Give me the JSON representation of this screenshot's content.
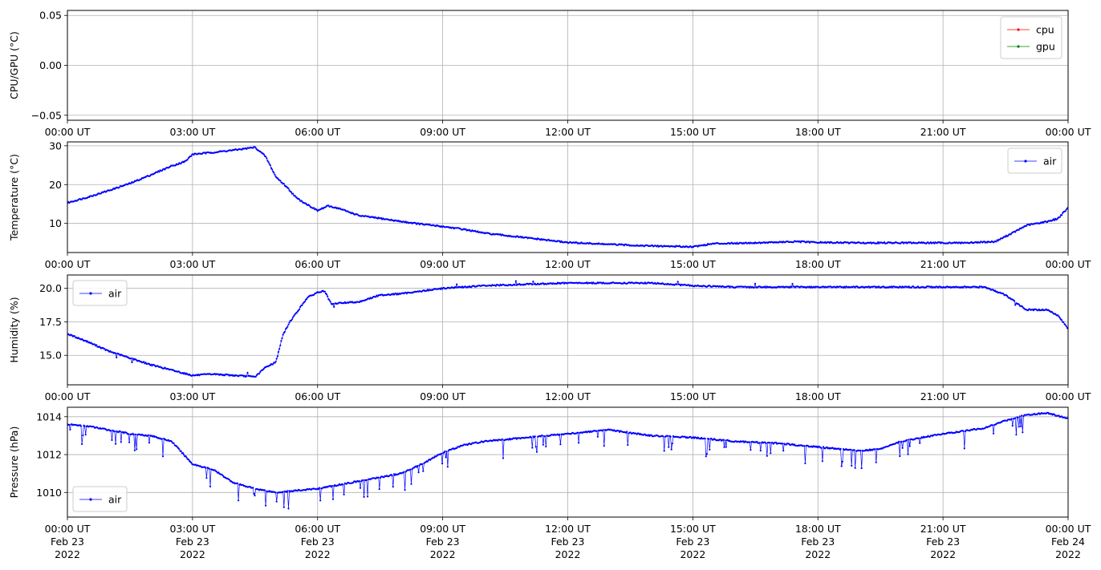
{
  "colors": {
    "cpu": "#ff0000",
    "gpu": "#008000",
    "air": "#0000ff",
    "grid": "#b0b0b0"
  },
  "x_ticks": [
    "00:00 UT",
    "03:00 UT",
    "06:00 UT",
    "09:00 UT",
    "12:00 UT",
    "15:00 UT",
    "18:00 UT",
    "21:00 UT",
    "00:00 UT"
  ],
  "x_dates": [
    "Feb 23",
    "Feb 23",
    "Feb 23",
    "Feb 23",
    "Feb 23",
    "Feb 23",
    "Feb 23",
    "Feb 23",
    "Feb 24"
  ],
  "x_years": [
    "2022",
    "2022",
    "2022",
    "2022",
    "2022",
    "2022",
    "2022",
    "2022",
    "2022"
  ],
  "chart_data": [
    {
      "type": "line",
      "ylabel": "CPU/GPU (°C)",
      "ylim": [
        -0.055,
        0.055
      ],
      "yticks": [
        -0.05,
        0.0,
        0.05
      ],
      "ytick_labels": [
        "−0.05",
        "0.00",
        "0.05"
      ],
      "xlim": [
        "2022-02-23T00:00",
        "2022-02-24T00:00"
      ],
      "grid": true,
      "legend": "top-right",
      "series": [
        {
          "name": "cpu",
          "color": "#ff0000",
          "points": []
        },
        {
          "name": "gpu",
          "color": "#008000",
          "points": []
        }
      ]
    },
    {
      "type": "line",
      "ylabel": "Temperature (°C)",
      "ylim": [
        2.5,
        31
      ],
      "yticks": [
        10,
        20,
        30
      ],
      "ytick_labels": [
        "10",
        "20",
        "30"
      ],
      "xlim": [
        "2022-02-23T00:00",
        "2022-02-24T00:00"
      ],
      "grid": true,
      "legend": "top-right",
      "series": [
        {
          "name": "air",
          "color": "#0000ff",
          "points": [
            [
              "00:00",
              15.3
            ],
            [
              "00:30",
              16.8
            ],
            [
              "01:00",
              18.5
            ],
            [
              "01:30",
              20.3
            ],
            [
              "02:00",
              22.5
            ],
            [
              "02:30",
              24.8
            ],
            [
              "02:50",
              26.0
            ],
            [
              "03:00",
              27.8
            ],
            [
              "03:30",
              28.3
            ],
            [
              "04:00",
              28.9
            ],
            [
              "04:30",
              29.6
            ],
            [
              "04:45",
              27.3
            ],
            [
              "05:00",
              22.0
            ],
            [
              "05:15",
              19.5
            ],
            [
              "05:30",
              16.5
            ],
            [
              "06:00",
              13.3
            ],
            [
              "06:15",
              14.5
            ],
            [
              "06:30",
              13.9
            ],
            [
              "07:00",
              12.0
            ],
            [
              "07:30",
              11.3
            ],
            [
              "08:00",
              10.5
            ],
            [
              "08:30",
              9.8
            ],
            [
              "09:00",
              9.2
            ],
            [
              "09:30",
              8.5
            ],
            [
              "10:00",
              7.5
            ],
            [
              "11:00",
              6.3
            ],
            [
              "12:00",
              5.1
            ],
            [
              "13:00",
              4.6
            ],
            [
              "14:00",
              4.2
            ],
            [
              "15:00",
              4.0
            ],
            [
              "15:30",
              4.8
            ],
            [
              "16:30",
              5.0
            ],
            [
              "17:30",
              5.3
            ],
            [
              "18:00",
              5.1
            ],
            [
              "19:00",
              5.0
            ],
            [
              "20:00",
              5.0
            ],
            [
              "21:00",
              5.0
            ],
            [
              "21:30",
              5.0
            ],
            [
              "22:15",
              5.3
            ],
            [
              "22:45",
              8.0
            ],
            [
              "23:00",
              9.5
            ],
            [
              "23:30",
              10.5
            ],
            [
              "23:45",
              11.2
            ],
            [
              "24:00",
              14.0
            ]
          ]
        }
      ]
    },
    {
      "type": "line",
      "ylabel": "Humidity (%)",
      "ylim": [
        12.8,
        21.0
      ],
      "yticks": [
        15.0,
        17.5,
        20.0
      ],
      "ytick_labels": [
        "15.0",
        "17.5",
        "20.0"
      ],
      "xlim": [
        "2022-02-23T00:00",
        "2022-02-24T00:00"
      ],
      "grid": true,
      "legend": "top-left",
      "series": [
        {
          "name": "air",
          "color": "#0000ff",
          "points": [
            [
              "00:00",
              16.6
            ],
            [
              "00:30",
              16.0
            ],
            [
              "01:00",
              15.3
            ],
            [
              "01:30",
              14.8
            ],
            [
              "02:00",
              14.3
            ],
            [
              "02:30",
              13.9
            ],
            [
              "03:00",
              13.5
            ],
            [
              "03:30",
              13.6
            ],
            [
              "04:00",
              13.5
            ],
            [
              "04:30",
              13.4
            ],
            [
              "04:45",
              14.1
            ],
            [
              "05:00",
              14.5
            ],
            [
              "05:10",
              16.5
            ],
            [
              "05:20",
              17.5
            ],
            [
              "05:30",
              18.2
            ],
            [
              "05:45",
              19.3
            ],
            [
              "06:00",
              19.7
            ],
            [
              "06:10",
              19.8
            ],
            [
              "06:20",
              18.8
            ],
            [
              "06:30",
              18.9
            ],
            [
              "07:00",
              19.0
            ],
            [
              "07:30",
              19.5
            ],
            [
              "08:00",
              19.6
            ],
            [
              "08:30",
              19.8
            ],
            [
              "09:00",
              20.0
            ],
            [
              "10:00",
              20.2
            ],
            [
              "11:00",
              20.3
            ],
            [
              "12:00",
              20.4
            ],
            [
              "13:00",
              20.4
            ],
            [
              "14:00",
              20.4
            ],
            [
              "15:00",
              20.2
            ],
            [
              "16:00",
              20.1
            ],
            [
              "17:00",
              20.1
            ],
            [
              "18:00",
              20.1
            ],
            [
              "19:00",
              20.1
            ],
            [
              "20:00",
              20.1
            ],
            [
              "21:00",
              20.1
            ],
            [
              "22:00",
              20.1
            ],
            [
              "22:30",
              19.5
            ],
            [
              "23:00",
              18.4
            ],
            [
              "23:30",
              18.4
            ],
            [
              "23:45",
              18.0
            ],
            [
              "24:00",
              17.0
            ]
          ]
        }
      ]
    },
    {
      "type": "line",
      "ylabel": "Pressure (hPa)",
      "ylim": [
        1008.7,
        1014.5
      ],
      "yticks": [
        1010,
        1012,
        1014
      ],
      "ytick_labels": [
        "1010",
        "1012",
        "1014"
      ],
      "xlim": [
        "2022-02-23T00:00",
        "2022-02-24T00:00"
      ],
      "grid": true,
      "legend": "bottom-left",
      "series": [
        {
          "name": "air",
          "color": "#0000ff",
          "points": [
            [
              "00:00",
              1013.6
            ],
            [
              "00:30",
              1013.5
            ],
            [
              "01:00",
              1013.3
            ],
            [
              "01:30",
              1013.1
            ],
            [
              "02:00",
              1013.0
            ],
            [
              "02:30",
              1012.7
            ],
            [
              "03:00",
              1011.5
            ],
            [
              "03:30",
              1011.2
            ],
            [
              "04:00",
              1010.5
            ],
            [
              "04:30",
              1010.2
            ],
            [
              "05:00",
              1010.0
            ],
            [
              "05:30",
              1010.1
            ],
            [
              "06:00",
              1010.2
            ],
            [
              "06:30",
              1010.4
            ],
            [
              "07:00",
              1010.6
            ],
            [
              "07:30",
              1010.8
            ],
            [
              "08:00",
              1011.0
            ],
            [
              "08:30",
              1011.5
            ],
            [
              "09:00",
              1012.1
            ],
            [
              "09:30",
              1012.5
            ],
            [
              "10:00",
              1012.7
            ],
            [
              "11:00",
              1012.9
            ],
            [
              "12:00",
              1013.1
            ],
            [
              "12:30",
              1013.2
            ],
            [
              "13:00",
              1013.3
            ],
            [
              "14:00",
              1013.0
            ],
            [
              "15:00",
              1012.9
            ],
            [
              "16:00",
              1012.7
            ],
            [
              "17:00",
              1012.6
            ],
            [
              "18:00",
              1012.4
            ],
            [
              "19:00",
              1012.2
            ],
            [
              "19:30",
              1012.3
            ],
            [
              "20:00",
              1012.7
            ],
            [
              "21:00",
              1013.1
            ],
            [
              "22:00",
              1013.4
            ],
            [
              "22:30",
              1013.8
            ],
            [
              "23:00",
              1014.1
            ],
            [
              "23:30",
              1014.2
            ],
            [
              "24:00",
              1013.9
            ]
          ]
        }
      ]
    }
  ]
}
